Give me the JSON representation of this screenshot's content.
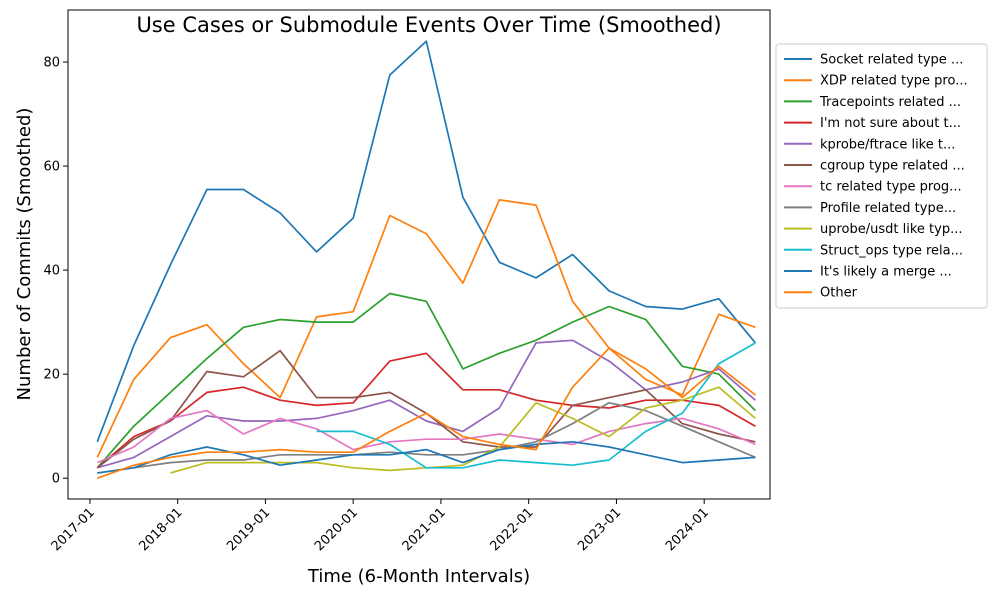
{
  "chart_data": {
    "type": "line",
    "title": "Use Cases or Submodule Events Over Time (Smoothed)",
    "xlabel": "Time (6-Month Intervals)",
    "ylabel": "Number of Commits (Smoothed)",
    "x_ticks": [
      "2017-01",
      "2018-01",
      "2019-01",
      "2020-01",
      "2021-01",
      "2022-01",
      "2023-01",
      "2024-01"
    ],
    "y_ticks": [
      0,
      20,
      40,
      60,
      80
    ],
    "ylim": [
      -4,
      90
    ],
    "xlim": [
      "2016-10",
      "2024-10"
    ],
    "grid": false,
    "legend_position": "outside-right",
    "x": [
      "2017-02",
      "2017-07",
      "2017-12",
      "2018-05",
      "2018-10",
      "2019-03",
      "2019-08",
      "2020-01",
      "2020-06",
      "2020-11",
      "2021-04",
      "2021-09",
      "2022-02",
      "2022-07",
      "2022-12",
      "2023-05",
      "2023-10",
      "2024-03",
      "2024-08"
    ],
    "series": [
      {
        "name": "Socket related type ...",
        "color": "#1f77b4",
        "values": [
          7,
          25.5,
          41,
          55.5,
          55.5,
          51,
          43.5,
          50,
          77.5,
          84,
          54,
          41.5,
          38.5,
          43,
          36,
          33,
          32.5,
          34.5,
          26
        ]
      },
      {
        "name": "XDP related type pro...",
        "color": "#ff7f0e",
        "values": [
          4,
          19,
          27,
          29.5,
          22,
          15.5,
          31,
          32,
          50.5,
          47,
          37.5,
          53.5,
          52.5,
          34,
          25,
          19,
          16,
          31.5,
          29
        ]
      },
      {
        "name": "Tracepoints related ...",
        "color": "#2ca02c",
        "values": [
          2,
          10,
          16.5,
          23,
          29,
          30.5,
          30,
          30,
          35.5,
          34,
          21,
          24,
          26.5,
          30,
          33,
          30.5,
          21.5,
          20,
          13
        ]
      },
      {
        "name": "I'm not sure about t...",
        "color": "#d62728",
        "values": [
          2,
          8,
          11,
          16.5,
          17.5,
          15,
          14,
          14.5,
          22.5,
          24,
          17,
          17,
          15,
          14,
          13.5,
          15,
          15,
          14,
          10
        ]
      },
      {
        "name": "kprobe/ftrace like t...",
        "color": "#9467bd",
        "values": [
          2,
          4,
          8,
          12,
          11,
          11,
          11.5,
          13,
          15,
          11,
          9,
          13.5,
          26,
          26.5,
          22.5,
          17,
          18.5,
          21,
          15
        ]
      },
      {
        "name": "cgroup type related ...",
        "color": "#8c564b",
        "values": [
          2,
          7.5,
          11,
          20.5,
          19.5,
          24.5,
          15.5,
          15.5,
          16.5,
          12.5,
          7,
          6,
          6,
          14,
          15.5,
          17,
          10.5,
          8.5,
          7
        ]
      },
      {
        "name": "tc related type prog...",
        "color": "#e377c2",
        "values": [
          3,
          6,
          11.5,
          13,
          8.5,
          11.5,
          9.5,
          5.5,
          7,
          7.5,
          7.5,
          8.5,
          7.5,
          6.5,
          9,
          10.5,
          11.5,
          9.5,
          6.5
        ]
      },
      {
        "name": "Profile related type...",
        "color": "#7f7f7f",
        "values": [
          null,
          2,
          3,
          3.5,
          3.5,
          4.5,
          4.5,
          4.5,
          5,
          4.5,
          4.5,
          5.5,
          7,
          10.5,
          14.5,
          13,
          10,
          7,
          4
        ]
      },
      {
        "name": "uprobe/usdt like typ...",
        "color": "#bcbd22",
        "values": [
          null,
          null,
          1,
          3,
          3,
          3,
          3,
          2,
          1.5,
          2,
          2.5,
          6,
          14.5,
          11.5,
          8,
          13.5,
          15,
          17.5,
          11.5
        ]
      },
      {
        "name": "Struct_ops type rela...",
        "color": "#17becf",
        "values": [
          null,
          null,
          null,
          null,
          null,
          null,
          9,
          9,
          6.5,
          2,
          2,
          3.5,
          3,
          2.5,
          3.5,
          9,
          12.5,
          22,
          26
        ]
      },
      {
        "name": "It's likely a merge ...",
        "color": "#1f77b4",
        "values": [
          1,
          2,
          4.5,
          6,
          4.5,
          2.5,
          3.5,
          4.5,
          4.5,
          5.5,
          3,
          5.5,
          6.5,
          7,
          6,
          4.5,
          3,
          3.5,
          4
        ]
      },
      {
        "name": "Other",
        "color": "#ff7f0e",
        "values": [
          0,
          2.5,
          4,
          5,
          5,
          5.5,
          5,
          5,
          9,
          12.5,
          8,
          6.5,
          5.5,
          17.5,
          25,
          21,
          15.5,
          21.5,
          16
        ]
      }
    ]
  }
}
